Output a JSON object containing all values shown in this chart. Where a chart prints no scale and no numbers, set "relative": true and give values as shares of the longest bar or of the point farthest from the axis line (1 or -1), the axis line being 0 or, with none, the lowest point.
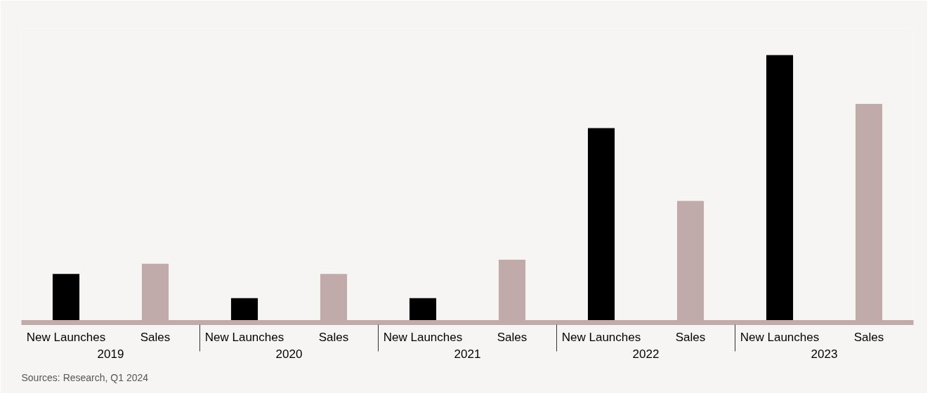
{
  "chart_data": {
    "type": "bar",
    "relative": true,
    "categories": [
      "2019",
      "2020",
      "2021",
      "2022",
      "2023"
    ],
    "series": [
      {
        "name": "New Launches",
        "color": "#000000",
        "values": [
          0.182,
          0.091,
          0.091,
          0.727,
          1
        ]
      },
      {
        "name": "Sales",
        "color": "#c0aaaa",
        "values": [
          0.22,
          0.182,
          0.235,
          0.455,
          0.818
        ]
      }
    ],
    "grid": false,
    "annotations": [
      "Sources: Research, Q1 2024"
    ]
  }
}
